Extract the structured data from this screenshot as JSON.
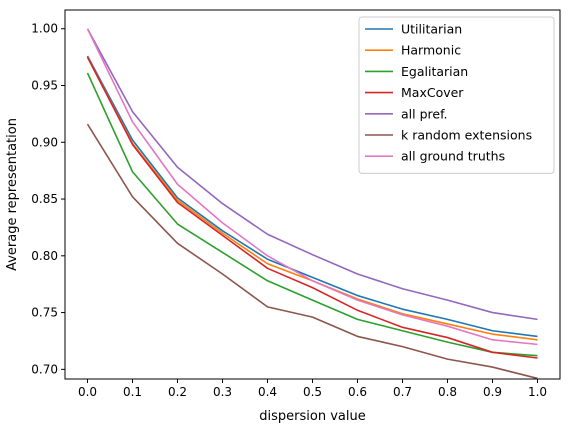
{
  "chart_data": {
    "type": "line",
    "title": "",
    "xlabel": "dispersion value",
    "ylabel": "Average representation",
    "xlim": [
      -0.05,
      1.05
    ],
    "ylim": [
      0.6915,
      1.0165
    ],
    "xticks": [
      0.0,
      0.1,
      0.2,
      0.3,
      0.4,
      0.5,
      0.6,
      0.7,
      0.8,
      0.9,
      1.0
    ],
    "xtick_labels": [
      "0.0",
      "0.1",
      "0.2",
      "0.3",
      "0.4",
      "0.5",
      "0.6",
      "0.7",
      "0.8",
      "0.9",
      "1.0"
    ],
    "yticks": [
      0.7,
      0.75,
      0.8,
      0.85,
      0.9,
      0.95,
      1.0
    ],
    "ytick_labels": [
      "0.70",
      "0.75",
      "0.80",
      "0.85",
      "0.90",
      "0.95",
      "1.00"
    ],
    "grid": false,
    "legend_position": "top-right",
    "x": [
      0.0,
      0.1,
      0.2,
      0.3,
      0.4,
      0.5,
      0.6,
      0.7,
      0.8,
      0.9,
      1.0
    ],
    "series": [
      {
        "name": "Utilitarian",
        "color": "#1f77b4",
        "values": [
          0.976,
          0.902,
          0.851,
          0.822,
          0.797,
          0.781,
          0.765,
          0.753,
          0.744,
          0.734,
          0.729
        ]
      },
      {
        "name": "Harmonic",
        "color": "#ff7f0e",
        "values": [
          0.975,
          0.899,
          0.849,
          0.82,
          0.793,
          0.778,
          0.762,
          0.749,
          0.74,
          0.731,
          0.726
        ]
      },
      {
        "name": "Egalitarian",
        "color": "#2ca02c",
        "values": [
          0.961,
          0.874,
          0.828,
          0.803,
          0.778,
          0.761,
          0.744,
          0.734,
          0.724,
          0.715,
          0.712
        ]
      },
      {
        "name": "MaxCover",
        "color": "#d62728",
        "values": [
          0.975,
          0.898,
          0.847,
          0.818,
          0.789,
          0.772,
          0.752,
          0.737,
          0.728,
          0.715,
          0.71
        ]
      },
      {
        "name": "all pref.",
        "color": "#9467bd",
        "values": [
          1.0,
          0.927,
          0.878,
          0.846,
          0.819,
          0.801,
          0.784,
          0.771,
          0.761,
          0.75,
          0.744
        ]
      },
      {
        "name": "k random extensions",
        "color": "#8c564b",
        "values": [
          0.916,
          0.852,
          0.811,
          0.784,
          0.755,
          0.746,
          0.729,
          0.72,
          0.709,
          0.702,
          0.692
        ]
      },
      {
        "name": "all ground truths",
        "color": "#e377c2",
        "values": [
          1.0,
          0.918,
          0.863,
          0.829,
          0.8,
          0.778,
          0.761,
          0.748,
          0.738,
          0.726,
          0.722
        ]
      }
    ]
  }
}
